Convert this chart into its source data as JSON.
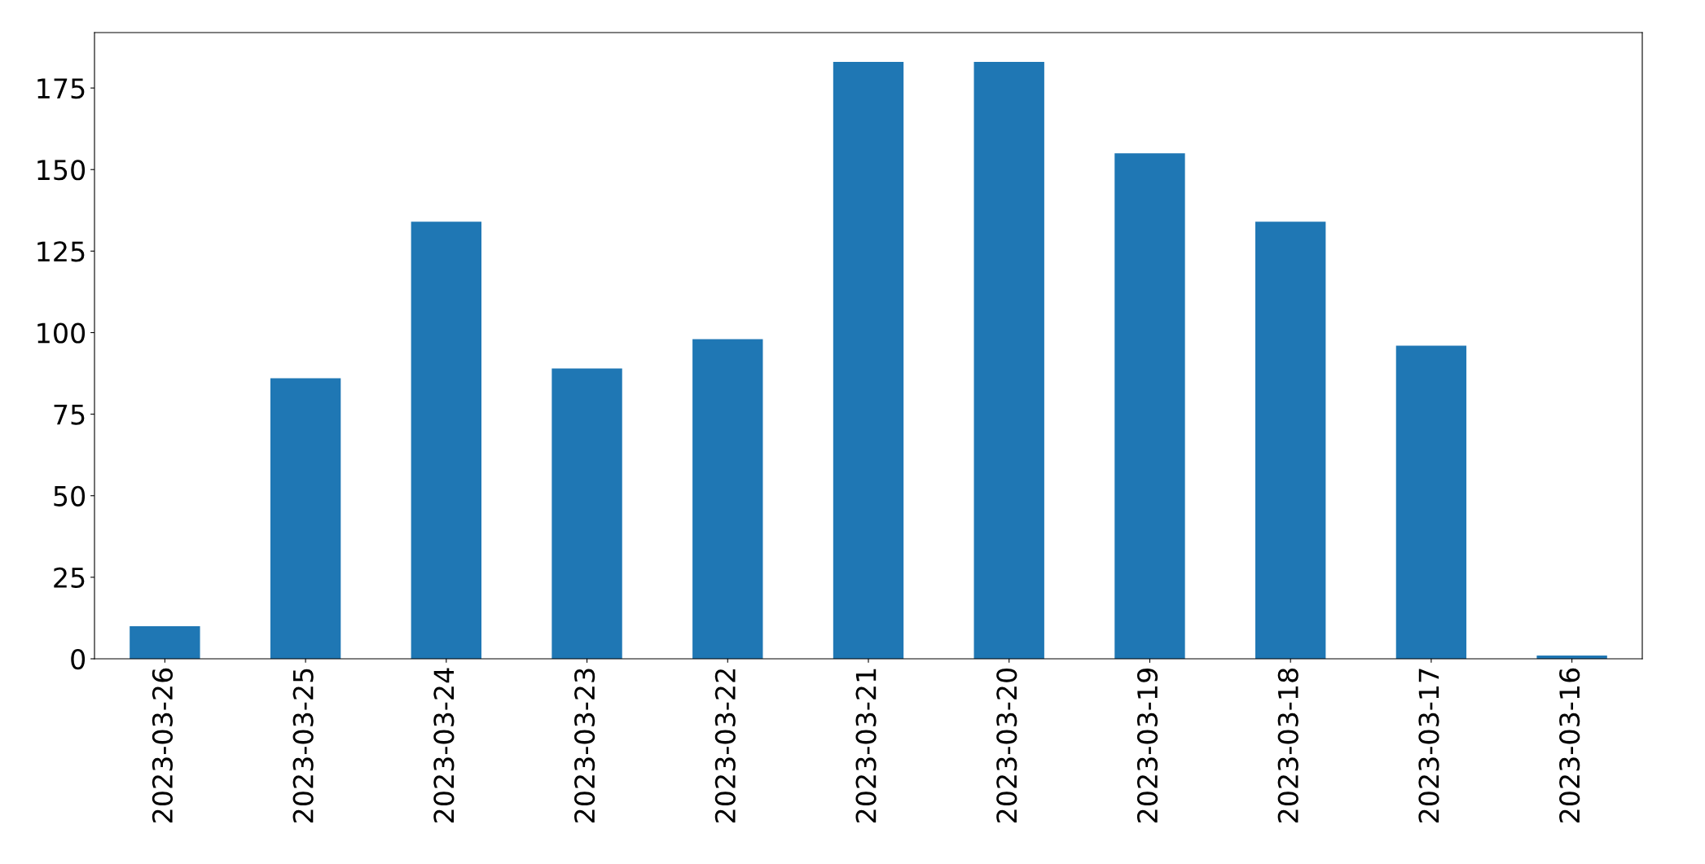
{
  "chart_data": {
    "type": "bar",
    "categories": [
      "2023-03-26",
      "2023-03-25",
      "2023-03-24",
      "2023-03-23",
      "2023-03-22",
      "2023-03-21",
      "2023-03-20",
      "2023-03-19",
      "2023-03-18",
      "2023-03-17",
      "2023-03-16"
    ],
    "values": [
      10,
      86,
      134,
      89,
      98,
      183,
      183,
      155,
      134,
      96,
      1
    ],
    "color": "#1f77b4",
    "ylim": [
      0,
      192
    ],
    "yticks": [
      0,
      25,
      50,
      75,
      100,
      125,
      150,
      175
    ],
    "grid": false,
    "legend": false
  }
}
